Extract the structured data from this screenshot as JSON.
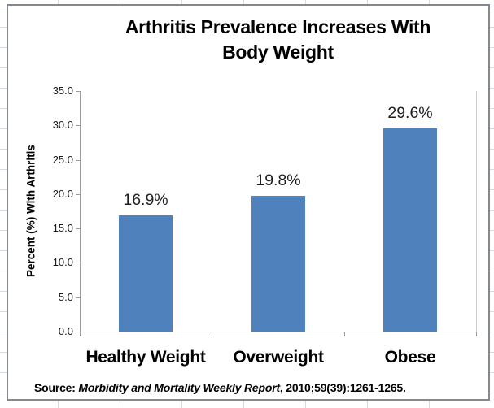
{
  "chart": {
    "title_line1": "Arthritis Prevalence Increases With",
    "title_line2": "Body Weight",
    "y_axis_title": "Percent (%) With Arthritis",
    "source_prefix": "Source: ",
    "source_italic": "Morbidity and Mortality Weekly Report",
    "source_suffix": ", 2010;59(39):1261-1265."
  },
  "chart_data": {
    "type": "bar",
    "title": "Arthritis Prevalence Increases With Body Weight",
    "categories": [
      "Healthy Weight",
      "Overweight",
      "Obese"
    ],
    "values": [
      16.9,
      19.8,
      29.6
    ],
    "bar_labels": [
      "16.9%",
      "19.8%",
      "29.6%"
    ],
    "xlabel": "",
    "ylabel": "Percent (%) With Arthritis",
    "ylim": [
      0,
      35
    ],
    "ytick_labels": [
      "0.0",
      "5.0",
      "10.0",
      "15.0",
      "20.0",
      "25.0",
      "30.0",
      "35.0"
    ],
    "grid": false,
    "legend": false,
    "source": "Source: Morbidity and Mortality Weekly Report, 2010;59(39):1261-1265.",
    "colors": {
      "bar": "#4f81bd",
      "axis": "#9a9a9a",
      "chart_border": "#85888c",
      "spreadsheet_gridline": "#d3dbe7",
      "text": "#000000"
    }
  }
}
